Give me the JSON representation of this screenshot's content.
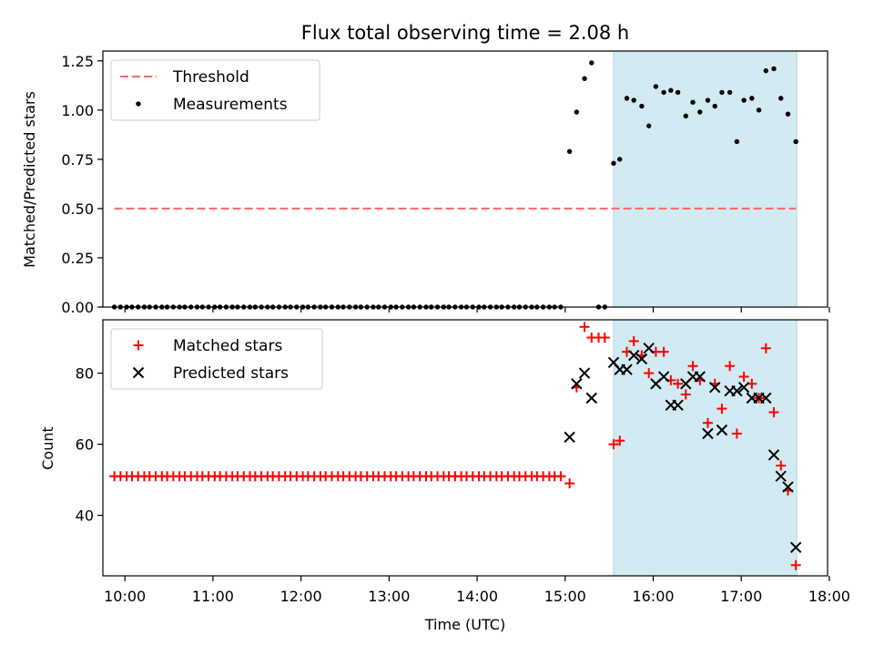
{
  "title": "Flux total observing time = 2.08 h",
  "colors": {
    "threshold": "#ff6666",
    "measurement": "#000000",
    "matched": "#ff0000",
    "predicted": "#000000",
    "highlight": "#add8e6"
  },
  "chart_data": [
    {
      "type": "scatter",
      "panel": "top",
      "ylabel": "Matched/Predicted stars",
      "ylim": [
        0,
        1.3
      ],
      "yticks": [
        0.0,
        0.25,
        0.5,
        0.75,
        1.0,
        1.25
      ],
      "ytick_labels": [
        "0.00",
        "0.25",
        "0.50",
        "0.75",
        "1.00",
        "1.25"
      ],
      "xlim": [
        9.75,
        17.98
      ],
      "highlight_span": [
        15.55,
        17.63
      ],
      "legend": {
        "placement": "upper-left",
        "entries": [
          "Threshold",
          "Measurements"
        ]
      },
      "threshold": {
        "name": "Threshold",
        "value": 0.5
      },
      "series": [
        {
          "name": "Measurements",
          "x": [
            9.88,
            9.95,
            10.02,
            10.08,
            10.15,
            10.22,
            10.28,
            10.35,
            10.42,
            10.48,
            10.55,
            10.62,
            10.68,
            10.75,
            10.82,
            10.88,
            10.95,
            11.02,
            11.08,
            11.15,
            11.22,
            11.28,
            11.35,
            11.42,
            11.48,
            11.55,
            11.62,
            11.68,
            11.75,
            11.82,
            11.88,
            11.95,
            12.02,
            12.08,
            12.15,
            12.22,
            12.28,
            12.35,
            12.42,
            12.48,
            12.55,
            12.62,
            12.68,
            12.75,
            12.82,
            12.88,
            12.95,
            13.02,
            13.08,
            13.15,
            13.22,
            13.28,
            13.35,
            13.42,
            13.48,
            13.55,
            13.62,
            13.68,
            13.75,
            13.82,
            13.88,
            13.95,
            14.02,
            14.08,
            14.15,
            14.22,
            14.28,
            14.35,
            14.42,
            14.48,
            14.55,
            14.62,
            14.68,
            14.75,
            14.82,
            14.88,
            14.95,
            15.05,
            15.13,
            15.22,
            15.3,
            15.38,
            15.45,
            15.55,
            15.62,
            15.7,
            15.78,
            15.87,
            15.95,
            16.03,
            16.12,
            16.2,
            16.28,
            16.37,
            16.45,
            16.53,
            16.62,
            16.7,
            16.78,
            16.87,
            16.95,
            17.03,
            17.12,
            17.2,
            17.28,
            17.37,
            17.45,
            17.53,
            17.62
          ],
          "y": [
            0,
            0,
            0,
            0,
            0,
            0,
            0,
            0,
            0,
            0,
            0,
            0,
            0,
            0,
            0,
            0,
            0,
            0,
            0,
            0,
            0,
            0,
            0,
            0,
            0,
            0,
            0,
            0,
            0,
            0,
            0,
            0,
            0,
            0,
            0,
            0,
            0,
            0,
            0,
            0,
            0,
            0,
            0,
            0,
            0,
            0,
            0,
            0,
            0,
            0,
            0,
            0,
            0,
            0,
            0,
            0,
            0,
            0,
            0,
            0,
            0,
            0,
            0,
            0,
            0,
            0,
            0,
            0,
            0,
            0,
            0,
            0,
            0,
            0,
            0,
            0,
            0,
            0.79,
            0.99,
            1.16,
            1.24,
            0,
            0,
            0.73,
            0.75,
            1.06,
            1.05,
            1.02,
            0.92,
            1.12,
            1.09,
            1.1,
            1.09,
            0.97,
            1.04,
            0.99,
            1.05,
            1.02,
            1.09,
            1.09,
            0.84,
            1.05,
            1.06,
            1.0,
            1.2,
            1.21,
            1.06,
            0.98,
            0.84
          ]
        }
      ]
    },
    {
      "type": "scatter",
      "panel": "bottom",
      "xlabel": "Time (UTC)",
      "ylabel": "Count",
      "ylim": [
        23,
        95
      ],
      "yticks": [
        40,
        60,
        80
      ],
      "ytick_labels": [
        "40",
        "60",
        "80"
      ],
      "xlim": [
        9.75,
        17.98
      ],
      "xticks": [
        10,
        11,
        12,
        13,
        14,
        15,
        16,
        17,
        18
      ],
      "xtick_labels": [
        "10:00",
        "11:00",
        "12:00",
        "13:00",
        "14:00",
        "15:00",
        "16:00",
        "17:00",
        "18:00"
      ],
      "highlight_span": [
        15.55,
        17.63
      ],
      "legend": {
        "placement": "upper-left",
        "entries": [
          "Matched stars",
          "Predicted stars"
        ]
      },
      "series": [
        {
          "name": "Matched stars",
          "marker": "plus",
          "x": [
            9.88,
            9.95,
            10.02,
            10.08,
            10.15,
            10.22,
            10.28,
            10.35,
            10.42,
            10.48,
            10.55,
            10.62,
            10.68,
            10.75,
            10.82,
            10.88,
            10.95,
            11.02,
            11.08,
            11.15,
            11.22,
            11.28,
            11.35,
            11.42,
            11.48,
            11.55,
            11.62,
            11.68,
            11.75,
            11.82,
            11.88,
            11.95,
            12.02,
            12.08,
            12.15,
            12.22,
            12.28,
            12.35,
            12.42,
            12.48,
            12.55,
            12.62,
            12.68,
            12.75,
            12.82,
            12.88,
            12.95,
            13.02,
            13.08,
            13.15,
            13.22,
            13.28,
            13.35,
            13.42,
            13.48,
            13.55,
            13.62,
            13.68,
            13.75,
            13.82,
            13.88,
            13.95,
            14.02,
            14.08,
            14.15,
            14.22,
            14.28,
            14.35,
            14.42,
            14.48,
            14.55,
            14.62,
            14.68,
            14.75,
            14.82,
            14.88,
            14.95,
            15.05,
            15.13,
            15.22,
            15.3,
            15.38,
            15.45,
            15.55,
            15.62,
            15.7,
            15.78,
            15.87,
            15.95,
            16.03,
            16.12,
            16.2,
            16.28,
            16.37,
            16.45,
            16.53,
            16.62,
            16.7,
            16.78,
            16.87,
            16.95,
            17.03,
            17.12,
            17.2,
            17.28,
            17.37,
            17.45,
            17.53,
            17.62
          ],
          "y": [
            51,
            51,
            51,
            51,
            51,
            51,
            51,
            51,
            51,
            51,
            51,
            51,
            51,
            51,
            51,
            51,
            51,
            51,
            51,
            51,
            51,
            51,
            51,
            51,
            51,
            51,
            51,
            51,
            51,
            51,
            51,
            51,
            51,
            51,
            51,
            51,
            51,
            51,
            51,
            51,
            51,
            51,
            51,
            51,
            51,
            51,
            51,
            51,
            51,
            51,
            51,
            51,
            51,
            51,
            51,
            51,
            51,
            51,
            51,
            51,
            51,
            51,
            51,
            51,
            51,
            51,
            51,
            51,
            51,
            51,
            51,
            51,
            51,
            51,
            51,
            51,
            51,
            49,
            76,
            93,
            90,
            90,
            90,
            60,
            61,
            86,
            89,
            85,
            80,
            86,
            86,
            78,
            77,
            74,
            82,
            78,
            66,
            77,
            70,
            82,
            63,
            79,
            77,
            73,
            87,
            69,
            54,
            47,
            26
          ]
        },
        {
          "name": "Predicted stars",
          "marker": "cross",
          "x": [
            15.05,
            15.13,
            15.22,
            15.3,
            15.55,
            15.62,
            15.7,
            15.78,
            15.87,
            15.95,
            16.03,
            16.12,
            16.2,
            16.28,
            16.37,
            16.45,
            16.53,
            16.62,
            16.7,
            16.78,
            16.87,
            16.95,
            17.03,
            17.12,
            17.2,
            17.28,
            17.37,
            17.45,
            17.53,
            17.62
          ],
          "y": [
            62,
            77,
            80,
            73,
            83,
            81,
            81,
            85,
            84,
            87,
            77,
            79,
            71,
            71,
            77,
            79,
            79,
            63,
            76,
            64,
            75,
            75,
            76,
            73,
            73,
            73,
            57,
            51,
            48,
            31
          ]
        }
      ]
    }
  ]
}
